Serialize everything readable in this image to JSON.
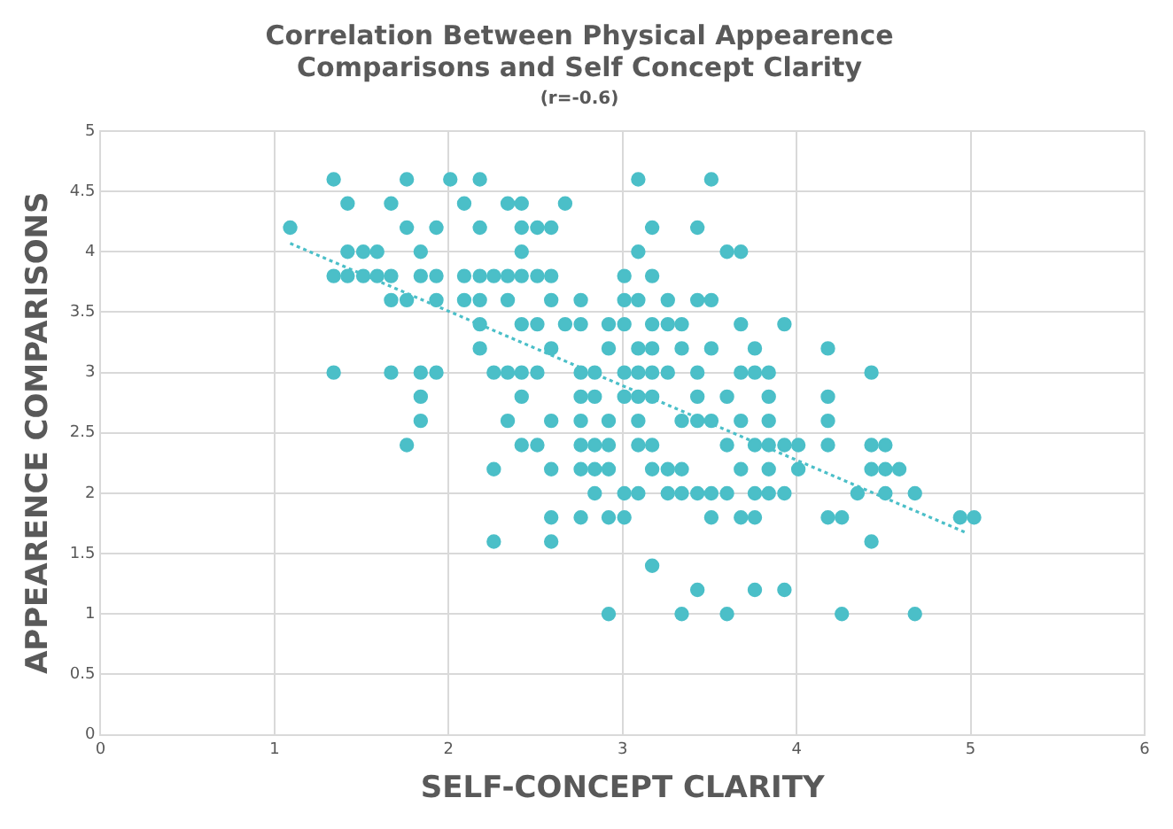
{
  "chart_data": {
    "type": "scatter",
    "title": "Correlation Between Physical Appearence Comparisons and Self Concept Clarity",
    "subtitle": "(r=-0.6)",
    "xlabel": "SELF-CONCEPT CLARITY",
    "ylabel": "APPEARENCE COMPARISONS",
    "xlim": [
      0,
      6
    ],
    "xticks": [
      0,
      1,
      2,
      3,
      4,
      5,
      6
    ],
    "ylim": [
      0,
      5
    ],
    "yticks": [
      0,
      0.5,
      1,
      1.5,
      2,
      2.5,
      3,
      3.5,
      4,
      4.5,
      5
    ],
    "grid": true,
    "legend": false,
    "marker": "circle",
    "series": [
      {
        "type": "scatter",
        "color": "#4bbfc8",
        "x": [
          1.34,
          1.76,
          2.01,
          2.18,
          3.09,
          3.51,
          1.42,
          1.67,
          2.09,
          2.34,
          2.42,
          2.67,
          1.09,
          1.76,
          1.93,
          2.18,
          2.42,
          2.51,
          2.59,
          3.17,
          3.43,
          1.42,
          1.51,
          1.59,
          1.84,
          2.42,
          3.09,
          3.6,
          3.68,
          1.34,
          1.42,
          1.51,
          1.59,
          1.67,
          1.84,
          1.93,
          2.09,
          2.18,
          2.26,
          2.34,
          2.42,
          2.51,
          2.59,
          3.01,
          3.17,
          1.67,
          1.76,
          1.93,
          2.09,
          2.18,
          2.34,
          2.59,
          2.76,
          3.01,
          3.09,
          3.26,
          3.43,
          3.51,
          2.18,
          2.42,
          2.51,
          2.67,
          2.76,
          2.92,
          3.01,
          3.17,
          3.26,
          3.34,
          3.68,
          3.93,
          2.18,
          2.59,
          2.92,
          3.09,
          3.17,
          3.34,
          3.51,
          3.76,
          4.18,
          1.34,
          1.67,
          1.84,
          1.93,
          2.26,
          2.34,
          2.42,
          2.51,
          2.76,
          2.84,
          3.01,
          3.09,
          3.17,
          3.26,
          3.43,
          3.68,
          3.76,
          3.84,
          4.43,
          1.84,
          2.42,
          2.76,
          2.84,
          3.01,
          3.09,
          3.17,
          3.43,
          3.6,
          3.84,
          4.18,
          1.84,
          2.34,
          2.59,
          2.76,
          2.92,
          3.09,
          3.34,
          3.43,
          3.51,
          3.68,
          3.84,
          4.18,
          1.76,
          2.42,
          2.51,
          2.76,
          2.84,
          2.92,
          3.09,
          3.17,
          3.6,
          3.76,
          3.84,
          3.93,
          4.01,
          4.18,
          4.43,
          4.51,
          2.26,
          2.59,
          2.76,
          2.84,
          2.92,
          3.17,
          3.26,
          3.34,
          3.68,
          3.84,
          4.01,
          4.43,
          4.51,
          4.59,
          2.84,
          3.01,
          3.09,
          3.26,
          3.34,
          3.43,
          3.51,
          3.6,
          3.76,
          3.84,
          3.93,
          4.35,
          4.51,
          4.68,
          2.59,
          2.76,
          2.92,
          3.01,
          3.51,
          3.68,
          3.76,
          4.18,
          4.26,
          4.94,
          5.02,
          2.26,
          2.59,
          4.43,
          3.17,
          3.43,
          3.76,
          3.93,
          2.92,
          3.34,
          3.6,
          4.26,
          4.68
        ],
        "values": [
          4.6,
          4.6,
          4.6,
          4.6,
          4.6,
          4.6,
          4.4,
          4.4,
          4.4,
          4.4,
          4.4,
          4.4,
          4.2,
          4.2,
          4.2,
          4.2,
          4.2,
          4.2,
          4.2,
          4.2,
          4.2,
          4,
          4,
          4,
          4,
          4,
          4,
          4,
          4,
          3.8,
          3.8,
          3.8,
          3.8,
          3.8,
          3.8,
          3.8,
          3.8,
          3.8,
          3.8,
          3.8,
          3.8,
          3.8,
          3.8,
          3.8,
          3.8,
          3.6,
          3.6,
          3.6,
          3.6,
          3.6,
          3.6,
          3.6,
          3.6,
          3.6,
          3.6,
          3.6,
          3.6,
          3.6,
          3.4,
          3.4,
          3.4,
          3.4,
          3.4,
          3.4,
          3.4,
          3.4,
          3.4,
          3.4,
          3.4,
          3.4,
          3.2,
          3.2,
          3.2,
          3.2,
          3.2,
          3.2,
          3.2,
          3.2,
          3.2,
          3,
          3,
          3,
          3,
          3,
          3,
          3,
          3,
          3,
          3,
          3,
          3,
          3,
          3,
          3,
          3,
          3,
          3,
          3,
          2.8,
          2.8,
          2.8,
          2.8,
          2.8,
          2.8,
          2.8,
          2.8,
          2.8,
          2.8,
          2.8,
          2.6,
          2.6,
          2.6,
          2.6,
          2.6,
          2.6,
          2.6,
          2.6,
          2.6,
          2.6,
          2.6,
          2.6,
          2.4,
          2.4,
          2.4,
          2.4,
          2.4,
          2.4,
          2.4,
          2.4,
          2.4,
          2.4,
          2.4,
          2.4,
          2.4,
          2.4,
          2.4,
          2.4,
          2.2,
          2.2,
          2.2,
          2.2,
          2.2,
          2.2,
          2.2,
          2.2,
          2.2,
          2.2,
          2.2,
          2.2,
          2.2,
          2.2,
          2,
          2,
          2,
          2,
          2,
          2,
          2,
          2,
          2,
          2,
          2,
          2,
          2,
          2,
          1.8,
          1.8,
          1.8,
          1.8,
          1.8,
          1.8,
          1.8,
          1.8,
          1.8,
          1.8,
          1.8,
          1.6,
          1.6,
          1.6,
          1.4,
          1.2,
          1.2,
          1.2,
          1,
          1,
          1,
          1,
          1
        ]
      },
      {
        "type": "line",
        "color": "#4bbfc8",
        "line_style": "dotted",
        "marker": "none",
        "x": [
          1.09,
          4.98
        ],
        "values": [
          4.07,
          1.67
        ]
      }
    ]
  }
}
